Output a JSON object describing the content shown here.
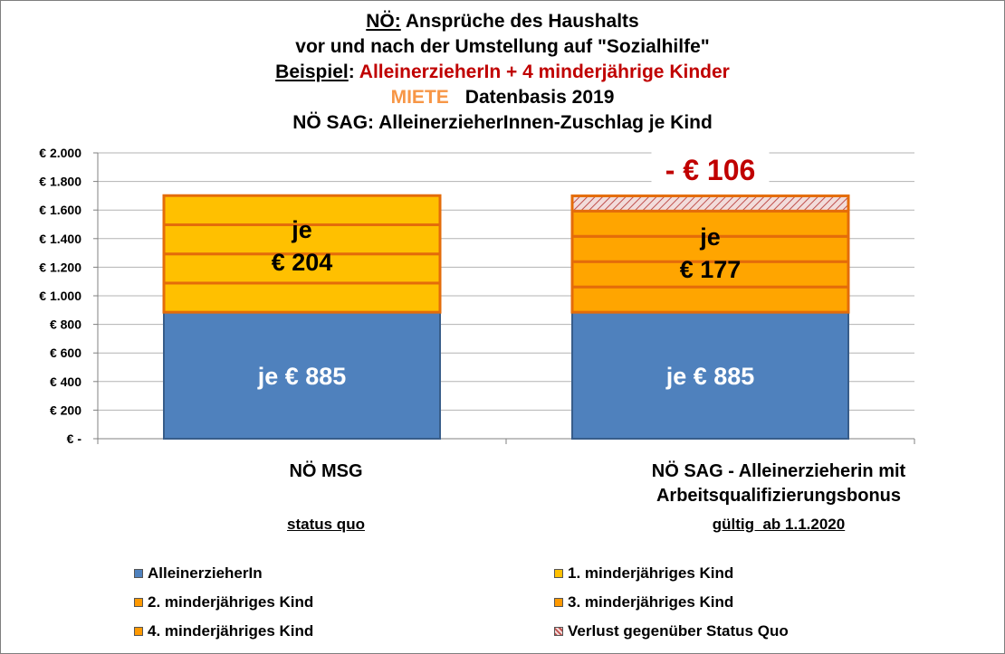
{
  "title": {
    "line1_prefix": "NÖ:",
    "line1_rest": " Ansprüche des Haushalts",
    "line2": "vor und nach der Umstellung auf \"Sozialhilfe\"",
    "line3_prefix": "Beispiel",
    "line3_sep": ": ",
    "line3_highlight": "AlleinerzieherIn + 4 minderjährige Kinder",
    "line4_highlight": "MIETE",
    "line4_rest": "Datenbasis 2019",
    "line5": "NÖ SAG: AlleinerzieherInnen-Zuschlag je Kind"
  },
  "chart_data": {
    "type": "bar",
    "stacked": true,
    "categories": [
      "NÖ MSG",
      "NÖ SAG - Alleinerzieherin mit Arbeitsqualifizierungsbonus"
    ],
    "category_lines": [
      [
        "NÖ MSG"
      ],
      [
        "NÖ SAG - Alleinerzieherin mit",
        "Arbeitsqualifizierungsbonus"
      ]
    ],
    "sublabels": [
      "status quo",
      "gültig  ab 1.1.2020"
    ],
    "ylim": [
      0,
      2000
    ],
    "yticks": [
      0,
      200,
      400,
      600,
      800,
      1000,
      1200,
      1400,
      1600,
      1800,
      2000
    ],
    "ytick_labels": [
      "€ -",
      "€ 200",
      "€ 400",
      "€ 600",
      "€ 800",
      "€ 1.000",
      "€ 1.200",
      "€ 1.400",
      "€ 1.600",
      "€ 1.800",
      "€ 2.000"
    ],
    "grid": true,
    "series": [
      {
        "name": "AlleinerzieherIn",
        "values": [
          885,
          885
        ],
        "color": "#4f81bd"
      },
      {
        "name": "1. minderjähriges Kind",
        "values": [
          204,
          177
        ],
        "color": "#ffc000"
      },
      {
        "name": "2. minderjähriges Kind",
        "values": [
          204,
          177
        ],
        "color": "#ffc000"
      },
      {
        "name": "3. minderjähriges Kind",
        "values": [
          204,
          177
        ],
        "color": "#ffc000"
      },
      {
        "name": "4. minderjähriges Kind",
        "values": [
          204,
          177
        ],
        "color": "#ffc000"
      },
      {
        "name": "Verlust gegenüber Status Quo",
        "values": [
          0,
          106
        ],
        "color": "#e6b9b8",
        "pattern": "hatched"
      }
    ],
    "bar_colors_override": {
      "1": "#ffa500"
    },
    "data_labels": [
      {
        "category": 0,
        "lines": [
          "je € 885"
        ],
        "color": "#ffffff",
        "at_value": 440
      },
      {
        "category": 0,
        "lines": [
          "je",
          "€ 204"
        ],
        "color": "#000000",
        "at_value": 1350
      },
      {
        "category": 1,
        "lines": [
          "je € 885"
        ],
        "color": "#ffffff",
        "at_value": 440
      },
      {
        "category": 1,
        "lines": [
          "je",
          "€ 177"
        ],
        "color": "#000000",
        "at_value": 1300
      },
      {
        "category": 1,
        "lines": [
          "- € 106"
        ],
        "color": "#c00000",
        "at_value": 1880
      }
    ],
    "legend_placement": "bottom"
  },
  "legend": [
    {
      "label": "AlleinerzieherIn",
      "color": "#4f81bd"
    },
    {
      "label": "1. minderjähriges Kind",
      "color": "#ffc000"
    },
    {
      "label": "2. minderjähriges Kind",
      "color": "#ff9900"
    },
    {
      "label": "3. minderjähriges Kind",
      "color": "#ff9900"
    },
    {
      "label": "4. minderjähriges Kind",
      "color": "#ff9900"
    },
    {
      "label": "Verlust gegenüber Status Quo",
      "color": "#e6b9b8",
      "pattern": "hatched"
    }
  ]
}
